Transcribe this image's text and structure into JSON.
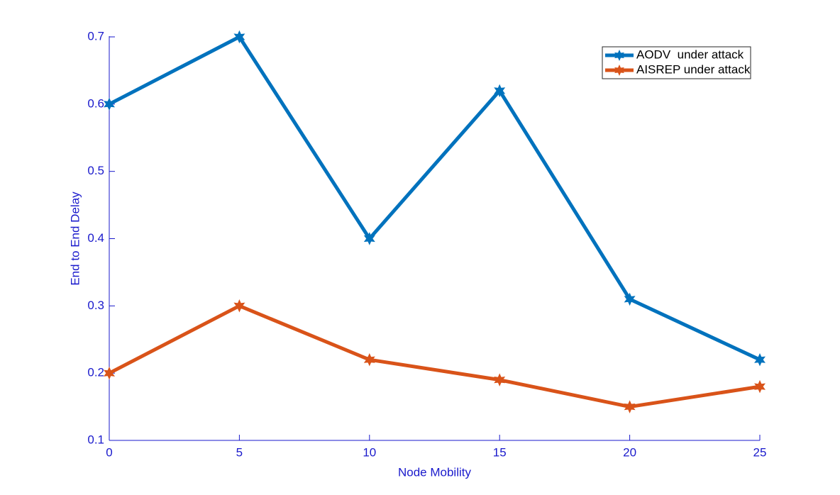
{
  "chart_data": {
    "type": "line",
    "xlabel": "Node Mobility",
    "ylabel": "End to End Delay",
    "x": [
      0,
      5,
      10,
      15,
      20,
      25
    ],
    "series": [
      {
        "name": "AODV  under attack",
        "color": "#0072bd",
        "values": [
          0.6,
          0.7,
          0.4,
          0.62,
          0.31,
          0.22
        ]
      },
      {
        "name": "AISREP under attack",
        "color": "#d95319",
        "values": [
          0.2,
          0.3,
          0.22,
          0.19,
          0.15,
          0.18
        ]
      }
    ],
    "xlim": [
      0,
      25
    ],
    "xticks": [
      0,
      5,
      10,
      15,
      20,
      25
    ],
    "ylim": [
      0.1,
      0.7
    ],
    "yticks": [
      0.1,
      0.2,
      0.3,
      0.4,
      0.5,
      0.6,
      0.7
    ],
    "axis_color": "#1a1acc",
    "grid": false,
    "legend": "top-right"
  }
}
